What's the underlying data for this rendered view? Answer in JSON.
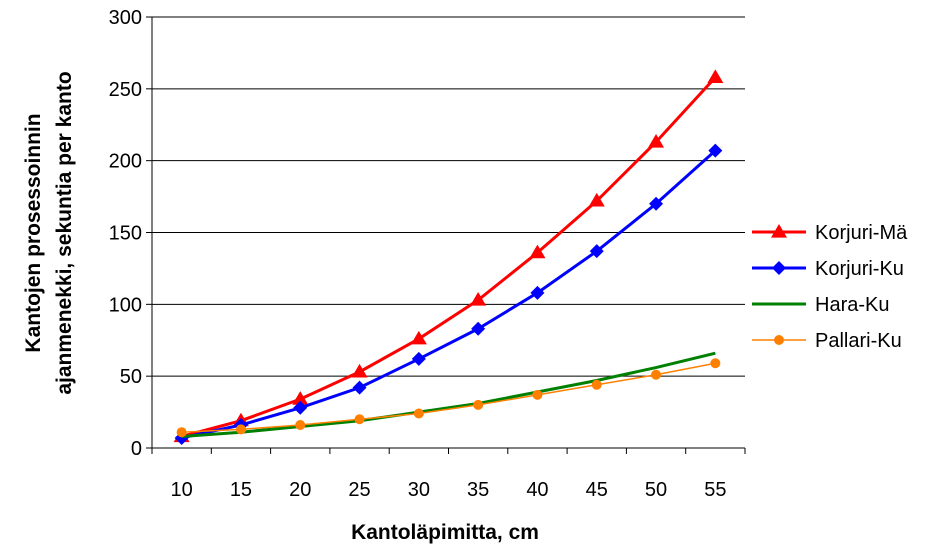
{
  "chart_data": {
    "type": "line",
    "xlabel": "Kantoläpimitta, cm",
    "ylabel_line1": "Kantojen prosessoinnin",
    "ylabel_line2": "ajanmenekki, sekuntia per kanto",
    "categories": [
      "10",
      "15",
      "20",
      "25",
      "30",
      "35",
      "40",
      "45",
      "50",
      "55"
    ],
    "x": [
      10,
      15,
      20,
      25,
      30,
      35,
      40,
      45,
      50,
      55
    ],
    "ylim": [
      0,
      300
    ],
    "yticks": [
      0,
      50,
      100,
      150,
      200,
      250,
      300
    ],
    "grid": "horizontal",
    "legend_position": "right",
    "series": [
      {
        "name": "Korjuri-Mä",
        "color": "#ff0000",
        "marker": "triangle",
        "values": [
          8,
          19,
          34,
          53,
          76,
          103,
          136,
          172,
          213,
          258
        ]
      },
      {
        "name": "Korjuri-Ku",
        "color": "#0000ff",
        "marker": "diamond",
        "values": [
          7,
          16,
          28,
          42,
          62,
          83,
          108,
          137,
          170,
          207
        ]
      },
      {
        "name": "Hara-Ku",
        "color": "#008000",
        "marker": "none",
        "values": [
          8,
          11,
          15,
          19,
          25,
          31,
          39,
          47,
          56,
          66
        ]
      },
      {
        "name": "Pallari-Ku",
        "color": "#ff8000",
        "marker": "circle",
        "values": [
          11,
          13,
          16,
          20,
          24,
          30,
          37,
          44,
          51,
          59
        ]
      }
    ]
  }
}
